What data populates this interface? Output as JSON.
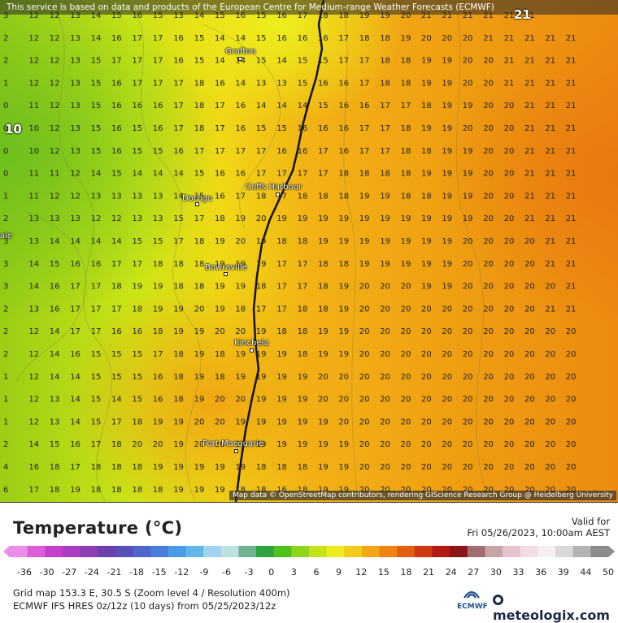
{
  "header": {
    "disclaimer": "This service is based on data and products of the European Centre for Medium-range Weather Forecasts (ECMWF)"
  },
  "map": {
    "attribution": "Map data © OpenStreetMap contributors, rendering GIScience Research Group @ Heidelberg University",
    "cities": [
      {
        "name": "Grafton"
      },
      {
        "name": "Coffs Harbour"
      },
      {
        "name": "Dorrigo"
      },
      {
        "name": "Bowraville"
      },
      {
        "name": "Kinchela"
      },
      {
        "name": "Port Macquarie"
      }
    ],
    "edge_labels": {
      "top_right": "21",
      "left_mid": "10",
      "left_cut": "ale"
    },
    "grid_rows": [
      "3 12 12 13 14 15 16 15 13 14 15 16 15 16 17 18 18 19 19 20 21 21 21 21 21 21",
      "2 12 12 13 14 16 17 17 16 15 14 14 15 16 16 16 17 18 18 19 20 20 20 21 21 21 21 21",
      "2 12 12 13 15 17 17 17 16 15 14 14 15 14 15 15 17 17 18 18 19 19 20 20 21 21 21 21",
      "1 12 12 13 15 16 17 17 17 18 16 14 13 13 15 16 16 17 18 18 19 19 20 20 21 21 21 21",
      "0 11 12 13 15 16 16 16 17 18 17 16 14 14 14 15 16 16 17 17 18 19 19 20 20 21 21 21",
      "0 10 12 13 15 16 15 16 17 18 17 16 15 15 16 16 16 17 17 18 19 19 20 20 20 21 21 21",
      "0 10 12 13 15 16 15 15 16 17 17 17 17 16 16 17 16 17 17 18 18 19 19 20 20 21 21 21",
      "0 11 11 12 14 15 14 14 14 15 16 16 17 17 17 17 18 18 18 18 19 19 19 20 20 21 21 21",
      "1 11 12 12 13 13 13 13 14 15 16 17 18 17 18 18 18 19 19 18 18 19 19 20 20 21 21 21",
      "2 13 13 13 12 12 13 13 15 17 18 19 20 19 19 19 19 19 19 19 19 19 19 20 20 21 21 21",
      "3 13 14 14 14 14 15 15 17 18 19 20 19 18 18 19 19 19 19 19 19 19 20 20 20 20 21 21",
      "3 14 15 16 16 17 17 18 18 18 19 19 19 17 17 18 18 19 19 19 19 19 20 20 20 20 21 21",
      "3 14 16 17 17 18 19 19 18 18 19 19 18 17 17 18 19 20 20 20 19 19 20 20 20 20 20 21",
      "2 13 16 17 17 17 18 19 19 20 19 18 17 17 18 18 19 20 20 20 20 20 20 20 20 20 21 21",
      "2 12 14 17 17 16 16 18 19 19 20 20 19 18 18 19 19 20 20 20 20 20 20 20 20 20 20 20",
      "2 12 14 16 15 15 15 17 18 19 18 19 19 19 18 19 19 20 20 20 20 20 20 20 20 20 20 20",
      "1 12 14 14 15 15 15 16 18 19 18 19 19 19 19 20 20 20 20 20 20 20 20 20 20 20 20 20",
      "1 12 13 14 15 14 15 16 18 19 20 20 19 19 19 20 20 20 20 20 20 20 20 20 20 20 20 20",
      "1 12 13 14 15 17 18 19 19 20 20 19 19 19 19 19 20 20 20 20 20 20 20 20 20 20 20 20",
      "2 14 15 16 17 18 20 20 19 20 20 20 19 19 19 19 19 20 20 20 20 20 20 20 20 20 20 20",
      "4 16 18 17 18 18 18 19 19 19 19 19 18 18 18 19 19 20 20 20 20 20 20 20 20 20 20 20",
      "6 17 18 19 18 18 18 18 19 19 19 18 18 16 18 19 19 20 20 20 20 20 20 20 20 20 20 20"
    ]
  },
  "legend": {
    "title": "Temperature (°C)",
    "valid_label": "Valid for",
    "valid_date": "Fri 05/26/2023, 10:00am AEST",
    "scale_ticks": [
      "-36",
      "-30",
      "-27",
      "-24",
      "-21",
      "-18",
      "-15",
      "-12",
      "-9",
      "-6",
      "-3",
      "0",
      "3",
      "6",
      "9",
      "12",
      "15",
      "18",
      "21",
      "24",
      "27",
      "30",
      "33",
      "36",
      "39",
      "44",
      "50"
    ],
    "scale_colors": [
      "#ea8fe9",
      "#dc5fda",
      "#c63fcc",
      "#a93fbe",
      "#8a3fb3",
      "#6b40ac",
      "#5a4fb7",
      "#4f65c9",
      "#4a7ddb",
      "#4a9ce6",
      "#62b6ea",
      "#9fd5ee",
      "#bfe2e0",
      "#6fb393",
      "#2fa43e",
      "#4ec11d",
      "#8fd51a",
      "#c5e31b",
      "#ecec1f",
      "#f4cb1b",
      "#f2a716",
      "#ef8412",
      "#e35e0f",
      "#cf3712",
      "#b01c14",
      "#8a1418",
      "#a06e70",
      "#c8a4a6",
      "#e6c4cf",
      "#f2dde2",
      "#f7f0f2",
      "#d9d9d9",
      "#b3b3b3",
      "#8c8c8c"
    ]
  },
  "footer": {
    "grid_info": "Grid map 153.3 E, 30.5 S (Zoom level 4 / Resolution 400m)",
    "model_info": "ECMWF IFS HRES 0z/12z (10 days) from 05/25/2023/12z",
    "ecmwf_label": "ECMWF",
    "brand": "meteologix.com"
  }
}
